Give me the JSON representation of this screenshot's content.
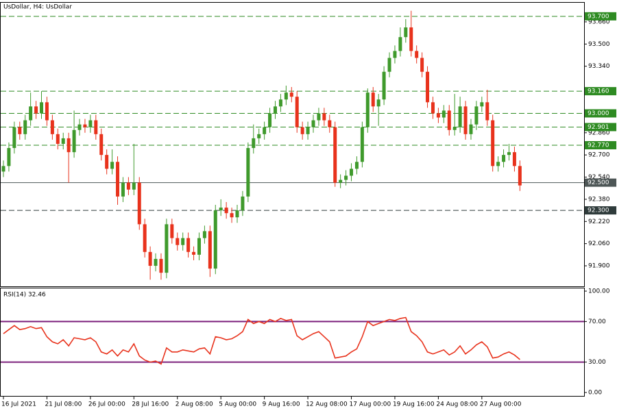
{
  "chart_data": [
    {
      "type": "candlestick",
      "title": "UsDollar, H4:  UsDollar",
      "categories": [
        "16 Jul 2021",
        null,
        null,
        null,
        null,
        null,
        null,
        null,
        "21 Jul 08:00",
        null,
        null,
        null,
        null,
        null,
        null,
        null,
        "26 Jul 00:00",
        null,
        null,
        null,
        null,
        null,
        null,
        null,
        "28 Jul 16:00",
        null,
        null,
        null,
        null,
        null,
        null,
        null,
        "2 Aug 08:00",
        null,
        null,
        null,
        null,
        null,
        null,
        null,
        "5 Aug 00:00",
        null,
        null,
        null,
        null,
        null,
        null,
        null,
        "9 Aug 16:00",
        null,
        null,
        null,
        null,
        null,
        null,
        null,
        "12 Aug 08:00",
        null,
        null,
        null,
        null,
        null,
        null,
        null,
        "17 Aug 00:00",
        null,
        null,
        null,
        null,
        null,
        null,
        null,
        "19 Aug 16:00",
        null,
        null,
        null,
        null,
        null,
        null,
        null,
        "24 Aug 08:00",
        null,
        null,
        null,
        null,
        null,
        null,
        null,
        "27 Aug 00:00",
        null,
        null,
        null,
        null,
        null,
        null,
        null
      ],
      "open": [
        92.58,
        92.62,
        92.75,
        92.9,
        92.85,
        92.95,
        93.05,
        93.0,
        93.08,
        92.95,
        92.85,
        92.78,
        92.82,
        92.72,
        92.88,
        92.92,
        92.9,
        92.95,
        92.85,
        92.7,
        92.6,
        92.65,
        92.4,
        92.5,
        92.45,
        92.5,
        92.2,
        92.0,
        91.9,
        91.95,
        91.85,
        92.2,
        92.1,
        92.05,
        92.1,
        92.0,
        91.98,
        92.1,
        92.15,
        91.88,
        92.3,
        92.32,
        92.28,
        92.25,
        92.3,
        92.4,
        92.75,
        92.82,
        92.85,
        92.9,
        93.0,
        93.05,
        93.1,
        93.15,
        93.12,
        92.9,
        92.85,
        92.9,
        92.95,
        93.0,
        92.95,
        92.9,
        92.5,
        92.52,
        92.55,
        92.6,
        92.65,
        92.9,
        93.15,
        93.05,
        93.1,
        93.3,
        93.4,
        93.45,
        93.55,
        93.62,
        93.45,
        93.4,
        93.3,
        93.08,
        93.0,
        92.97,
        93.02,
        92.88,
        92.9,
        93.05,
        92.85,
        92.92,
        93.05,
        93.08,
        92.95,
        92.62,
        92.65,
        92.7,
        92.72,
        92.62
      ],
      "high": [
        92.66,
        92.79,
        92.94,
        92.94,
        92.99,
        93.15,
        93.09,
        93.16,
        93.12,
        92.99,
        92.89,
        92.86,
        92.86,
        93.02,
        92.96,
        92.96,
        92.99,
        92.99,
        92.89,
        92.74,
        92.74,
        92.69,
        92.54,
        92.54,
        92.78,
        92.54,
        92.24,
        92.04,
        91.99,
        91.99,
        92.24,
        92.24,
        92.14,
        92.14,
        92.14,
        92.04,
        92.14,
        92.19,
        92.19,
        92.34,
        92.38,
        92.36,
        92.32,
        92.34,
        92.44,
        92.79,
        92.92,
        92.89,
        92.94,
        93.04,
        93.09,
        93.14,
        93.2,
        93.19,
        93.16,
        92.94,
        92.94,
        92.99,
        93.04,
        93.04,
        92.99,
        92.94,
        92.56,
        92.59,
        92.64,
        92.69,
        92.94,
        93.18,
        93.19,
        93.14,
        93.34,
        93.44,
        93.49,
        93.62,
        93.68,
        93.74,
        93.49,
        93.44,
        93.34,
        93.12,
        93.04,
        93.06,
        93.06,
        93.14,
        93.12,
        93.09,
        92.96,
        93.09,
        93.12,
        93.17,
        92.99,
        92.69,
        92.74,
        92.78,
        92.76,
        92.66
      ],
      "low": [
        92.54,
        92.58,
        92.71,
        92.81,
        92.81,
        92.91,
        92.96,
        92.96,
        92.91,
        92.81,
        92.74,
        92.74,
        92.5,
        92.68,
        92.84,
        92.86,
        92.86,
        92.81,
        92.66,
        92.56,
        92.56,
        92.34,
        92.36,
        92.41,
        92.41,
        92.16,
        91.96,
        91.8,
        91.86,
        91.8,
        91.81,
        92.06,
        92.01,
        92.01,
        91.96,
        91.94,
        91.94,
        92.06,
        91.82,
        91.84,
        92.26,
        92.24,
        92.21,
        92.21,
        92.26,
        92.36,
        92.71,
        92.78,
        92.81,
        92.86,
        92.96,
        93.01,
        93.06,
        93.08,
        92.86,
        92.81,
        92.81,
        92.86,
        92.91,
        92.91,
        92.86,
        92.47,
        92.46,
        92.48,
        92.51,
        92.56,
        92.61,
        92.86,
        93.01,
        92.91,
        93.06,
        93.26,
        93.36,
        93.41,
        93.51,
        93.41,
        93.36,
        93.26,
        93.04,
        92.96,
        92.93,
        92.93,
        92.84,
        92.84,
        92.86,
        92.81,
        92.81,
        92.88,
        93.01,
        92.91,
        92.58,
        92.58,
        92.61,
        92.66,
        92.58,
        92.44
      ],
      "close": [
        92.62,
        92.75,
        92.9,
        92.85,
        92.95,
        93.05,
        93.0,
        93.08,
        92.95,
        92.85,
        92.78,
        92.82,
        92.72,
        92.88,
        92.92,
        92.9,
        92.95,
        92.85,
        92.7,
        92.6,
        92.65,
        92.4,
        92.5,
        92.45,
        92.5,
        92.2,
        92.0,
        91.9,
        91.95,
        91.85,
        92.2,
        92.1,
        92.05,
        92.1,
        92.0,
        91.98,
        92.1,
        92.15,
        91.88,
        92.3,
        92.32,
        92.28,
        92.25,
        92.3,
        92.4,
        92.75,
        92.82,
        92.85,
        92.9,
        93.0,
        93.05,
        93.1,
        93.15,
        93.12,
        92.9,
        92.85,
        92.9,
        92.95,
        93.0,
        92.95,
        92.9,
        92.5,
        92.52,
        92.55,
        92.6,
        92.65,
        92.9,
        93.15,
        93.05,
        93.1,
        93.3,
        93.4,
        93.45,
        93.55,
        93.62,
        93.45,
        93.4,
        93.3,
        93.08,
        93.0,
        92.97,
        93.02,
        92.88,
        92.9,
        93.05,
        92.85,
        92.92,
        93.05,
        93.08,
        92.95,
        92.62,
        92.65,
        92.7,
        92.72,
        92.62,
        92.48
      ],
      "up_color": "#3f9a2c",
      "down_color": "#e8321c",
      "ylim": [
        91.752,
        93.798
      ],
      "yticks": [
        {
          "value": 93.66,
          "label": "93.660"
        },
        {
          "value": 93.5,
          "label": "93.500"
        },
        {
          "value": 93.34,
          "label": "93.340"
        },
        {
          "value": 92.86,
          "label": "92.860"
        },
        {
          "value": 92.7,
          "label": "92.700"
        },
        {
          "value": 92.54,
          "label": "92.540"
        },
        {
          "value": 92.38,
          "label": "92.380"
        },
        {
          "value": 92.22,
          "label": "92.220"
        },
        {
          "value": 92.06,
          "label": "92.060"
        },
        {
          "value": 91.9,
          "label": "91.900"
        }
      ],
      "levels": [
        {
          "value": 93.7,
          "label": "93.700",
          "color": "#2e8b22"
        },
        {
          "value": 93.16,
          "label": "93.160",
          "color": "#2e8b22"
        },
        {
          "value": 93.0,
          "label": "93.000",
          "color": "#2e8b22"
        },
        {
          "value": 92.901,
          "label": "92.901",
          "color": "#2e8b22"
        },
        {
          "value": 92.77,
          "label": "92.770",
          "color": "#2e8b22"
        },
        {
          "value": 92.5,
          "label": "92.500",
          "color": "#4d5656",
          "style": "solid"
        },
        {
          "value": 92.3,
          "label": "92.300",
          "color": "#2f3b3b"
        }
      ]
    },
    {
      "type": "line",
      "title": "RSI(14) 32.46",
      "color": "#e8321c",
      "values": [
        58,
        62,
        66,
        62,
        63,
        65,
        63,
        64,
        55,
        50,
        48,
        52,
        46,
        54,
        53,
        52,
        54,
        50,
        40,
        38,
        42,
        36,
        42,
        40,
        48,
        36,
        32,
        30,
        31,
        28,
        44,
        40,
        40,
        42,
        41,
        40,
        43,
        44,
        38,
        55,
        54,
        52,
        53,
        56,
        60,
        72,
        68,
        70,
        68,
        72,
        70,
        73,
        71,
        72,
        56,
        52,
        55,
        58,
        60,
        55,
        50,
        34,
        35,
        36,
        40,
        43,
        55,
        70,
        66,
        68,
        70,
        72,
        71,
        73,
        74,
        60,
        56,
        50,
        40,
        38,
        40,
        42,
        37,
        40,
        46,
        38,
        42,
        47,
        50,
        45,
        34,
        35,
        38,
        40,
        37,
        32.46
      ],
      "ylim": [
        -3.4,
        102.7
      ],
      "yticks": [
        {
          "value": 100,
          "label": "100.00"
        },
        {
          "value": 70,
          "label": "70.00"
        },
        {
          "value": 30,
          "label": "30.00"
        },
        {
          "value": 0,
          "label": "0.00"
        }
      ],
      "levels": [
        70,
        30
      ],
      "level_color": "#7b1f7b"
    }
  ]
}
